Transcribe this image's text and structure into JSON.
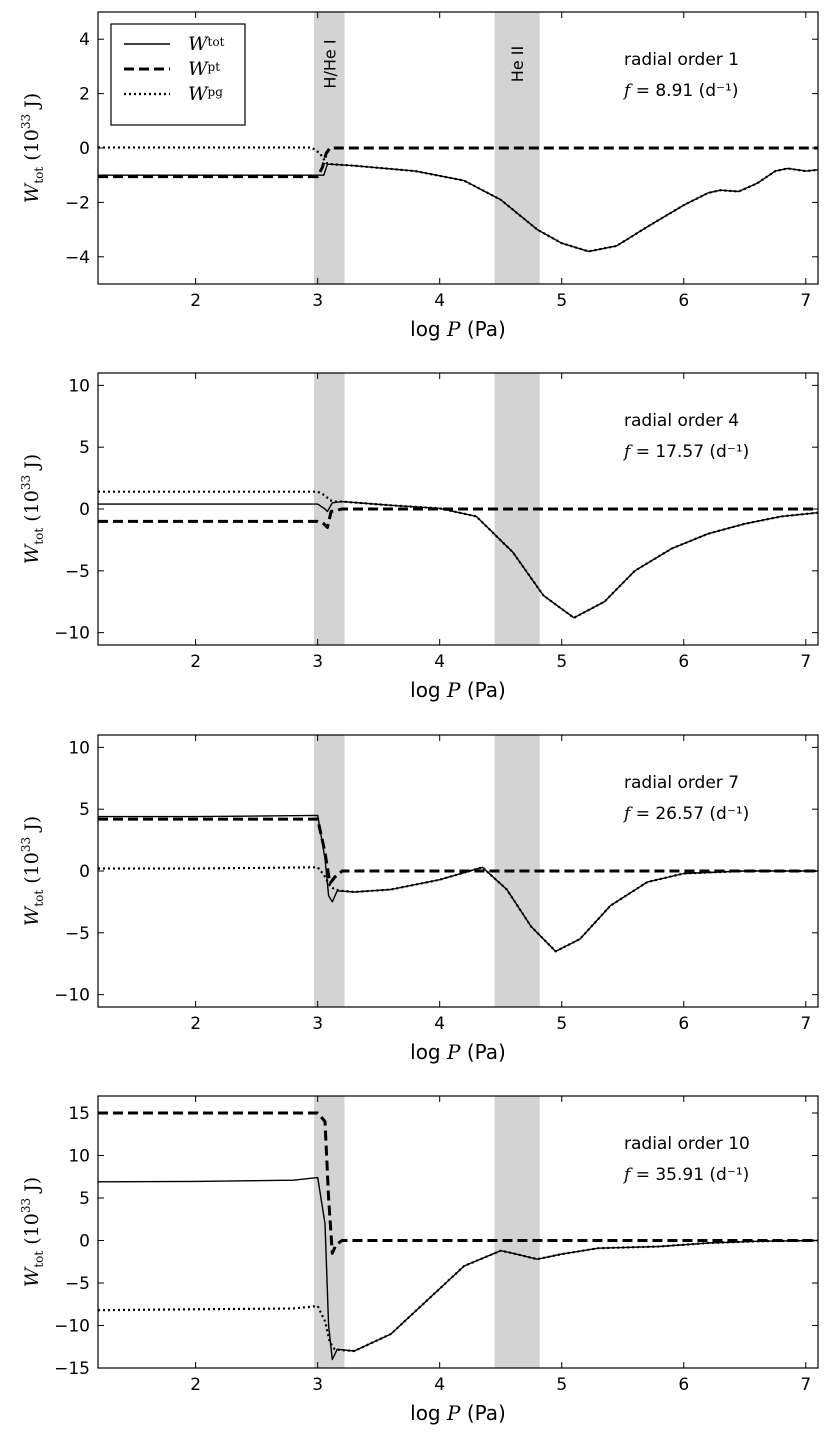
{
  "chart_data": [
    {
      "type": "line",
      "xlabel": "log P (Pa)",
      "ylabel": "W_tot (10^33 J)",
      "xlim": [
        1.2,
        7.1
      ],
      "ylim": [
        -5,
        5
      ],
      "xticks": [
        2,
        3,
        4,
        5,
        6,
        7
      ],
      "yticks": [
        -4,
        -2,
        0,
        2,
        4
      ],
      "annotation": [
        "radial order 1",
        "f = 8.91 (d⁻¹)"
      ],
      "shaded_bands": [
        {
          "x": [
            2.97,
            3.22
          ],
          "label": "H/He I"
        },
        {
          "x": [
            4.45,
            4.82
          ],
          "label": "He II"
        }
      ],
      "legend": {
        "placement": "top-left",
        "entries": [
          "W_tot",
          "W_pt",
          "W_pg"
        ]
      },
      "series": [
        {
          "name": "W_tot",
          "style": "solid",
          "x": [
            1.2,
            2.0,
            2.9,
            3.05,
            3.08,
            3.12,
            3.3,
            3.8,
            4.2,
            4.5,
            4.8,
            5.0,
            5.22,
            5.45,
            5.7,
            6.0,
            6.2,
            6.3,
            6.45,
            6.6,
            6.75,
            6.85,
            7.0,
            7.1
          ],
          "y": [
            -1.0,
            -1.0,
            -1.0,
            -1.0,
            -0.6,
            -0.6,
            -0.65,
            -0.85,
            -1.2,
            -1.9,
            -3.0,
            -3.5,
            -3.8,
            -3.6,
            -2.9,
            -2.1,
            -1.65,
            -1.55,
            -1.6,
            -1.3,
            -0.85,
            -0.75,
            -0.85,
            -0.8
          ]
        },
        {
          "name": "W_pt",
          "style": "dashed",
          "x": [
            1.2,
            2.0,
            3.0,
            3.04,
            3.07,
            3.1,
            3.2,
            4.0,
            5.0,
            6.0,
            7.1
          ],
          "y": [
            -1.05,
            -1.05,
            -1.05,
            -0.7,
            -0.2,
            0.0,
            0.0,
            0.0,
            0.0,
            0.0,
            0.0
          ]
        },
        {
          "name": "W_pg",
          "style": "dotted",
          "x": [
            1.2,
            2.0,
            2.95,
            3.02,
            3.07,
            3.12,
            3.3,
            3.8,
            4.2,
            4.5,
            4.8,
            5.0,
            5.22,
            5.45,
            5.7,
            6.0,
            6.2,
            6.3,
            6.45,
            6.6,
            6.75,
            6.85,
            7.0,
            7.1
          ],
          "y": [
            0.02,
            0.02,
            0.02,
            -0.2,
            -0.55,
            -0.6,
            -0.65,
            -0.85,
            -1.2,
            -1.9,
            -3.0,
            -3.5,
            -3.8,
            -3.6,
            -2.9,
            -2.1,
            -1.65,
            -1.55,
            -1.6,
            -1.3,
            -0.85,
            -0.75,
            -0.85,
            -0.8
          ]
        }
      ]
    },
    {
      "type": "line",
      "xlabel": "log P (Pa)",
      "ylabel": "W_tot (10^33 J)",
      "xlim": [
        1.2,
        7.1
      ],
      "ylim": [
        -11,
        11
      ],
      "xticks": [
        2,
        3,
        4,
        5,
        6,
        7
      ],
      "yticks": [
        -10,
        -5,
        0,
        5,
        10
      ],
      "annotation": [
        "radial order 4",
        "f = 17.57 (d⁻¹)"
      ],
      "shaded_bands": [
        {
          "x": [
            2.97,
            3.22
          ]
        },
        {
          "x": [
            4.45,
            4.82
          ]
        }
      ],
      "series": [
        {
          "name": "W_tot",
          "style": "solid",
          "x": [
            1.2,
            2.0,
            3.0,
            3.06,
            3.08,
            3.12,
            3.2,
            3.6,
            4.0,
            4.3,
            4.6,
            4.85,
            5.1,
            5.35,
            5.6,
            5.9,
            6.2,
            6.5,
            6.8,
            7.1
          ],
          "y": [
            0.4,
            0.4,
            0.4,
            0.0,
            -0.2,
            0.5,
            0.6,
            0.3,
            0.05,
            -0.6,
            -3.5,
            -7.0,
            -8.8,
            -7.5,
            -5.0,
            -3.2,
            -2.0,
            -1.2,
            -0.6,
            -0.3
          ]
        },
        {
          "name": "W_pt",
          "style": "dashed",
          "x": [
            1.2,
            2.0,
            3.0,
            3.05,
            3.08,
            3.11,
            3.2,
            4.0,
            5.0,
            6.0,
            7.1
          ],
          "y": [
            -1.0,
            -1.0,
            -1.0,
            -1.2,
            -1.5,
            -0.2,
            0.0,
            0.0,
            0.0,
            0.0,
            0.0
          ]
        },
        {
          "name": "W_pg",
          "style": "dotted",
          "x": [
            1.2,
            2.0,
            3.0,
            3.06,
            3.1,
            3.14,
            3.2,
            3.6,
            4.0,
            4.3,
            4.6,
            4.85,
            5.1,
            5.35,
            5.6,
            5.9,
            6.2,
            6.5,
            6.8,
            7.1
          ],
          "y": [
            1.4,
            1.4,
            1.4,
            1.1,
            0.7,
            0.6,
            0.6,
            0.3,
            0.05,
            -0.6,
            -3.5,
            -7.0,
            -8.8,
            -7.5,
            -5.0,
            -3.2,
            -2.0,
            -1.2,
            -0.6,
            -0.3
          ]
        }
      ]
    },
    {
      "type": "line",
      "xlabel": "log P (Pa)",
      "ylabel": "W_tot (10^33 J)",
      "xlim": [
        1.2,
        7.1
      ],
      "ylim": [
        -11,
        11
      ],
      "xticks": [
        2,
        3,
        4,
        5,
        6,
        7
      ],
      "yticks": [
        -10,
        -5,
        0,
        5,
        10
      ],
      "annotation": [
        "radial order 7",
        "f = 26.57 (d⁻¹)"
      ],
      "shaded_bands": [
        {
          "x": [
            2.97,
            3.22
          ]
        },
        {
          "x": [
            4.45,
            4.82
          ]
        }
      ],
      "series": [
        {
          "name": "W_tot",
          "style": "solid",
          "x": [
            1.2,
            2.0,
            3.0,
            3.06,
            3.09,
            3.12,
            3.16,
            3.3,
            3.6,
            4.0,
            4.35,
            4.55,
            4.75,
            4.95,
            5.15,
            5.4,
            5.7,
            6.0,
            6.5,
            7.1
          ],
          "y": [
            4.4,
            4.4,
            4.5,
            1.0,
            -2.0,
            -2.5,
            -1.6,
            -1.7,
            -1.5,
            -0.7,
            0.3,
            -1.5,
            -4.5,
            -6.5,
            -5.5,
            -2.8,
            -0.9,
            -0.2,
            0.0,
            0.0
          ]
        },
        {
          "name": "W_pt",
          "style": "dashed",
          "x": [
            1.2,
            2.0,
            3.0,
            3.06,
            3.1,
            3.14,
            3.2,
            4.0,
            5.0,
            6.0,
            7.1
          ],
          "y": [
            4.2,
            4.2,
            4.2,
            1.5,
            -1.0,
            -0.5,
            0.0,
            0.0,
            0.0,
            0.0,
            0.0
          ]
        },
        {
          "name": "W_pg",
          "style": "dotted",
          "x": [
            1.2,
            2.0,
            3.0,
            3.05,
            3.1,
            3.14,
            3.2,
            3.3,
            3.6,
            4.0,
            4.35,
            4.55,
            4.75,
            4.95,
            5.15,
            5.4,
            5.7,
            6.0,
            6.5,
            7.1
          ],
          "y": [
            0.2,
            0.2,
            0.3,
            -0.3,
            -1.2,
            -1.5,
            -1.6,
            -1.7,
            -1.5,
            -0.7,
            0.3,
            -1.5,
            -4.5,
            -6.5,
            -5.5,
            -2.8,
            -0.9,
            -0.2,
            0.0,
            0.0
          ]
        }
      ]
    },
    {
      "type": "line",
      "xlabel": "log P (Pa)",
      "ylabel": "W_tot (10^33 J)",
      "xlim": [
        1.2,
        7.1
      ],
      "ylim": [
        -15,
        17
      ],
      "xticks": [
        2,
        3,
        4,
        5,
        6,
        7
      ],
      "yticks": [
        -15,
        -10,
        -5,
        0,
        5,
        10,
        15
      ],
      "annotation": [
        "radial order 10",
        "f = 35.91 (d⁻¹)"
      ],
      "shaded_bands": [
        {
          "x": [
            2.97,
            3.22
          ]
        },
        {
          "x": [
            4.45,
            4.82
          ]
        }
      ],
      "series": [
        {
          "name": "W_tot",
          "style": "solid",
          "x": [
            1.2,
            2.0,
            2.8,
            3.0,
            3.06,
            3.09,
            3.12,
            3.16,
            3.3,
            3.6,
            3.9,
            4.2,
            4.5,
            4.6,
            4.8,
            5.0,
            5.3,
            5.8,
            6.2,
            6.6,
            7.1
          ],
          "y": [
            6.9,
            6.95,
            7.1,
            7.4,
            2.0,
            -10.0,
            -14.0,
            -12.8,
            -13.0,
            -11.0,
            -7.0,
            -3.0,
            -1.2,
            -1.5,
            -2.2,
            -1.6,
            -0.9,
            -0.7,
            -0.3,
            -0.1,
            0.0
          ]
        },
        {
          "name": "W_pt",
          "style": "dashed",
          "x": [
            1.2,
            2.0,
            3.0,
            3.06,
            3.09,
            3.12,
            3.15,
            3.2,
            4.0,
            5.0,
            6.0,
            7.1
          ],
          "y": [
            15.0,
            15.0,
            15.0,
            14.0,
            5.0,
            -1.5,
            -0.5,
            0.0,
            0.0,
            0.0,
            0.0,
            0.0
          ]
        },
        {
          "name": "W_pg",
          "style": "dotted",
          "x": [
            1.2,
            2.0,
            2.8,
            3.0,
            3.06,
            3.1,
            3.14,
            3.2,
            3.3,
            3.6,
            3.9,
            4.2,
            4.5,
            4.6,
            4.8,
            5.0,
            5.3,
            5.8,
            6.2,
            6.6,
            7.1
          ],
          "y": [
            -8.2,
            -8.1,
            -8.0,
            -7.7,
            -9.5,
            -12.0,
            -12.8,
            -12.9,
            -13.0,
            -11.0,
            -7.0,
            -3.0,
            -1.2,
            -1.5,
            -2.2,
            -1.6,
            -0.9,
            -0.7,
            -0.3,
            -0.1,
            0.0
          ]
        }
      ]
    }
  ]
}
